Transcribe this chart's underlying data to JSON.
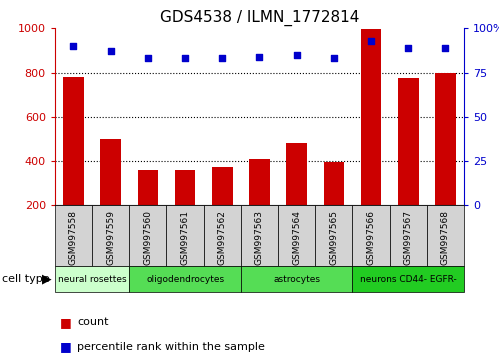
{
  "title": "GDS4538 / ILMN_1772814",
  "samples": [
    "GSM997558",
    "GSM997559",
    "GSM997560",
    "GSM997561",
    "GSM997562",
    "GSM997563",
    "GSM997564",
    "GSM997565",
    "GSM997566",
    "GSM997567",
    "GSM997568"
  ],
  "counts": [
    780,
    500,
    360,
    360,
    375,
    410,
    480,
    395,
    995,
    775,
    800
  ],
  "percentiles": [
    90,
    87,
    83,
    83,
    83,
    84,
    85,
    83,
    93,
    89,
    89
  ],
  "ylim_left": [
    200,
    1000
  ],
  "ylim_right": [
    0,
    100
  ],
  "yticks_left": [
    200,
    400,
    600,
    800,
    1000
  ],
  "yticks_right": [
    0,
    25,
    50,
    75,
    100
  ],
  "bar_color": "#cc0000",
  "dot_color": "#0000cc",
  "grid_color": "#000000",
  "cell_types": [
    {
      "label": "neural rosettes",
      "start": 0,
      "end": 2,
      "color": "#ccffcc"
    },
    {
      "label": "oligodendrocytes",
      "start": 2,
      "end": 5,
      "color": "#55dd55"
    },
    {
      "label": "astrocytes",
      "start": 5,
      "end": 8,
      "color": "#55dd55"
    },
    {
      "label": "neurons CD44- EGFR-",
      "start": 8,
      "end": 11,
      "color": "#22cc22"
    }
  ],
  "legend_count_label": "count",
  "legend_pct_label": "percentile rank within the sample",
  "cell_type_label": "cell type",
  "background_color": "#ffffff"
}
